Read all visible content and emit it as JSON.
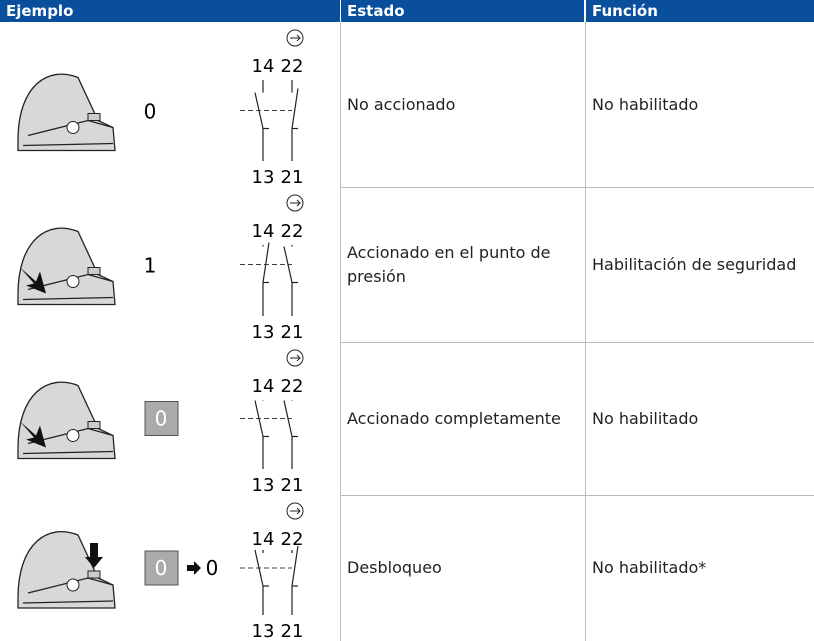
{
  "table": {
    "headers": [
      "Ejemplo",
      "Estado",
      "Función"
    ],
    "rows": [
      {
        "position": "0",
        "position_boxed": false,
        "terminals_top": [
          "14",
          "22"
        ],
        "terminals_bottom": [
          "13",
          "21"
        ],
        "estado": "No accionado",
        "funcion": "No habilitado"
      },
      {
        "position": "1",
        "position_boxed": false,
        "terminals_top": [
          "14",
          "22"
        ],
        "terminals_bottom": [
          "13",
          "21"
        ],
        "estado": "Accionado en el punto de presión",
        "funcion": "Habilitación de seguridad"
      },
      {
        "position": "0",
        "position_boxed": true,
        "terminals_top": [
          "14",
          "22"
        ],
        "terminals_bottom": [
          "13",
          "21"
        ],
        "estado": "Accionado completamente",
        "funcion": "No habilitado"
      },
      {
        "position": "0",
        "position_boxed": true,
        "position_to": "0",
        "terminals_top": [
          "14",
          "22"
        ],
        "terminals_bottom": [
          "13",
          "21"
        ],
        "estado": "Desbloqueo",
        "funcion": "No habilitado*"
      }
    ]
  }
}
